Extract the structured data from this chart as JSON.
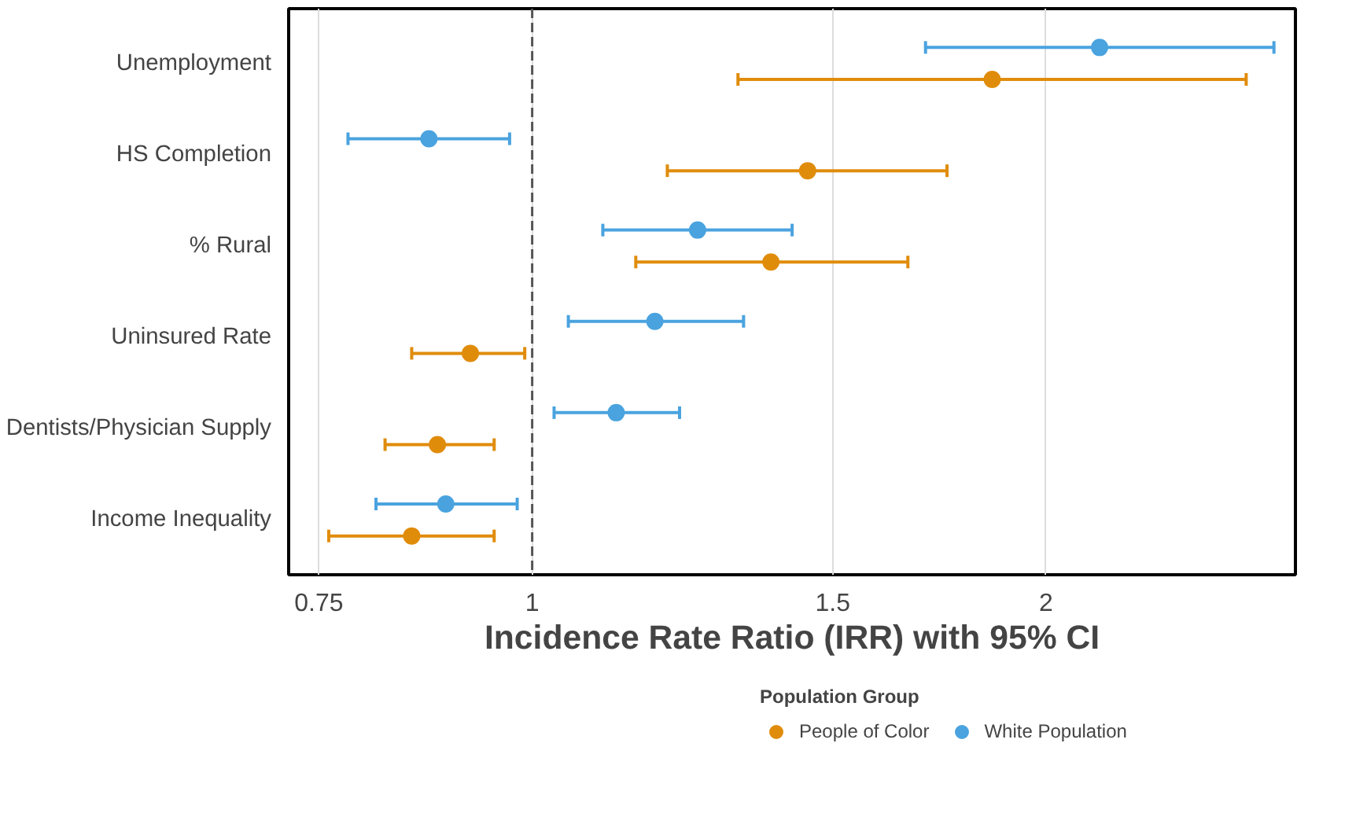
{
  "chart_data": {
    "type": "scatter",
    "orientation": "horizontal",
    "xlabel": "Incidence Rate Ratio (IRR) with 95% CI",
    "legend_title": "Population Group",
    "legend": "bottom",
    "grid": "x",
    "log": "x",
    "marker": "circle",
    "categories": [
      "Unemployment",
      "HS Completion",
      "% Rural",
      "Uninsured Rate",
      "Dentists/Physician Supply",
      "Income Inequality"
    ],
    "xlim": [
      0.72,
      2.8
    ],
    "xticks": [
      0.75,
      1,
      {
        "value": 1.5,
        "label": "1.5"
      },
      2
    ],
    "ref_lines": [
      {
        "axis": "x",
        "value": 1,
        "line_style": "dashed",
        "color": "#555555"
      }
    ],
    "series": [
      {
        "name": "People of Color",
        "color": "#e08c0b",
        "values": [
          1.86,
          1.45,
          1.38,
          0.92,
          0.88,
          0.85
        ],
        "errors": [
          [
            1.32,
            2.62
          ],
          [
            1.2,
            1.75
          ],
          [
            1.15,
            1.66
          ],
          [
            0.85,
            0.99
          ],
          [
            0.82,
            0.95
          ],
          [
            0.76,
            0.95
          ]
        ]
      },
      {
        "name": "White Population",
        "color": "#4aa3df",
        "values": [
          2.15,
          0.87,
          1.25,
          1.18,
          1.12,
          0.89
        ],
        "errors": [
          [
            1.7,
            2.72
          ],
          [
            0.78,
            0.97
          ],
          [
            1.1,
            1.42
          ],
          [
            1.05,
            1.33
          ],
          [
            1.03,
            1.22
          ],
          [
            0.81,
            0.98
          ]
        ]
      }
    ]
  }
}
